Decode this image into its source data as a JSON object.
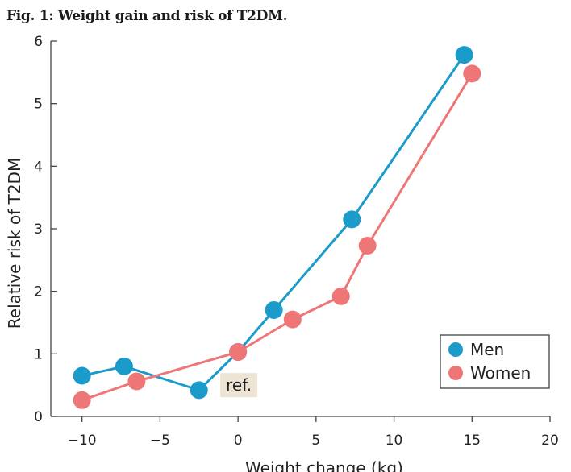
{
  "figure_title": "Fig. 1: Weight gain and risk of T2DM.",
  "colors": {
    "men": "#1a9bc9",
    "women": "#ee7676",
    "annotation_bg": "#ede4d3"
  },
  "chart_data": {
    "type": "line",
    "xlabel": "Weight change (kg)",
    "ylabel": "Relative risk of T2DM",
    "xlim": [
      -12,
      20
    ],
    "ylim": [
      0,
      6
    ],
    "x_ticks": [
      -10,
      -5,
      0,
      5,
      10,
      15,
      20
    ],
    "y_ticks": [
      0,
      1,
      2,
      3,
      4,
      5,
      6
    ],
    "x_tick_labels": [
      "−10",
      "−5",
      "0",
      "5",
      "10",
      "15",
      "20"
    ],
    "y_tick_labels": [
      "0",
      "1",
      "2",
      "3",
      "4",
      "5",
      "6"
    ],
    "series": [
      {
        "name": "Men",
        "color": "#1a9bc9",
        "x": [
          -10,
          -7.3,
          -2.5,
          0,
          2.3,
          7.3,
          14.5
        ],
        "y": [
          0.65,
          0.8,
          0.42,
          1.03,
          1.7,
          3.15,
          5.78
        ]
      },
      {
        "name": "Women",
        "color": "#ee7676",
        "x": [
          -10,
          -6.5,
          0,
          3.5,
          6.6,
          8.3,
          15
        ],
        "y": [
          0.26,
          0.56,
          1.03,
          1.55,
          1.92,
          2.73,
          5.48
        ]
      }
    ],
    "annotations": [
      {
        "text": "ref.",
        "x": 0,
        "y": 0.5
      }
    ],
    "legend": {
      "position": "bottom-right",
      "items": [
        "Men",
        "Women"
      ]
    },
    "grid": false
  }
}
